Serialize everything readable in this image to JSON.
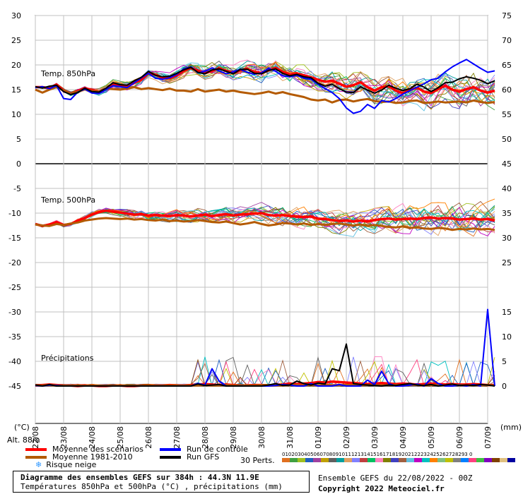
{
  "chart_data": {
    "type": "line",
    "title": "Diagramme des ensembles GEFS sur 384h : 44.3N 11.9E",
    "subtitle": "Températures 850hPa et 500hPa (°C) , précipitations (mm)",
    "left_axis_unit": "(°C)",
    "right_axis_unit": "(mm)",
    "altitude": "Alt. 88m",
    "left_ticks": [
      "30",
      "25",
      "20",
      "15",
      "10",
      "5",
      "0",
      "-5",
      "-10",
      "-15",
      "-20",
      "-25",
      "-30",
      "-35",
      "-40",
      "-45"
    ],
    "right_ticks_top": [
      "75",
      "70",
      "65",
      "60",
      "55",
      "50",
      "45"
    ],
    "right_ticks_middle": [
      "40",
      "35",
      "30",
      "25"
    ],
    "right_ticks_bottom": [
      "15",
      "10",
      "5",
      "0"
    ],
    "x_labels": [
      "22/08",
      "23/08",
      "24/08",
      "25/08",
      "26/08",
      "27/08",
      "28/08",
      "29/08",
      "30/08",
      "31/08",
      "01/09",
      "02/09",
      "03/09",
      "04/09",
      "05/09",
      "06/09",
      "07/09"
    ],
    "ylim_left": [
      -45,
      30
    ],
    "panels": [
      {
        "label": "Temp. 850hPa",
        "unit": "°C"
      },
      {
        "label": "Temp. 500hPa",
        "unit": "°C"
      },
      {
        "label": "Précipitations",
        "unit": "mm"
      }
    ],
    "x_step_days": 0.25,
    "series": [
      {
        "name": "Moyenne des scénarios",
        "panel": "Temp. 850hPa",
        "color": "#ff0000",
        "values": [
          15.5,
          15.5,
          15.3,
          16,
          14.8,
          14.2,
          14.7,
          15.3,
          14.9,
          14.6,
          15.1,
          16.2,
          15.9,
          15.8,
          16.4,
          17,
          18.4,
          18,
          17.4,
          17.3,
          17.9,
          18.8,
          19.4,
          18.8,
          18.3,
          18.8,
          19.3,
          18.8,
          18.4,
          18.9,
          19.2,
          18.6,
          18.4,
          18.9,
          19.4,
          18.6,
          18.1,
          18.3,
          17.9,
          17.5,
          17,
          16.6,
          16.8,
          16.2,
          15.6,
          15.9,
          16.5,
          15.5,
          14.8,
          15.5,
          15.7,
          14.8,
          14.3,
          14.9,
          15.4,
          14.6,
          14.3,
          15.1,
          15.8,
          15,
          14.6,
          15.1,
          15.5,
          14.8,
          14.4,
          14.8
        ]
      },
      {
        "name": "Moyenne 1981-2010",
        "panel": "Temp. 850hPa",
        "color": "#b45a00",
        "values": [
          15,
          14.4,
          15,
          15.5,
          14.8,
          14.2,
          14.6,
          15.1,
          14.7,
          14.6,
          15.2,
          15.1,
          15,
          15.2,
          15.5,
          15.1,
          15.3,
          15.1,
          14.9,
          15.2,
          14.8,
          14.8,
          14.6,
          15.1,
          14.6,
          14.8,
          15,
          14.6,
          14.8,
          14.5,
          14.3,
          14.1,
          14.3,
          14.6,
          14.2,
          14.5,
          14.1,
          13.8,
          13.5,
          13,
          12.8,
          13,
          12.4,
          12.9,
          13,
          12.6,
          12.9,
          13.1,
          12.7,
          12.5,
          12.6,
          12.3,
          12.4,
          12.7,
          12.8,
          12.3,
          12.4,
          12.6,
          12.4,
          12.5,
          12.6,
          12.4,
          12.8,
          12.5,
          12.3,
          12.5
        ]
      },
      {
        "name": "Run de contrôle",
        "panel": "Temp. 850hPa",
        "color": "#0000ff",
        "values": [
          15.4,
          15.6,
          15.2,
          15.8,
          13.2,
          13,
          14.5,
          15.1,
          14.3,
          14.2,
          15,
          15.8,
          15.6,
          15.4,
          16.4,
          17.4,
          18.3,
          17.3,
          17.1,
          17.4,
          18.1,
          19.2,
          19.6,
          18.4,
          18.7,
          19.4,
          18.8,
          18.2,
          18.6,
          19.1,
          18.5,
          18.1,
          18.4,
          19.3,
          18.7,
          17.8,
          17.6,
          17.9,
          17.3,
          17.1,
          16.1,
          15.2,
          14.4,
          13.2,
          11.3,
          10.2,
          10.6,
          12,
          11.2,
          12.8,
          12.5,
          13.2,
          14.1,
          14.8,
          15.5,
          16.2,
          17,
          17.3,
          18.6,
          19.6,
          20.4,
          21.1,
          20.2,
          19.3,
          18.5,
          18.8
        ]
      },
      {
        "name": "Run GFS",
        "panel": "Temp. 850hPa",
        "color": "#000000",
        "values": [
          15.6,
          15.3,
          15.7,
          15.9,
          14.6,
          14,
          14.4,
          15.3,
          14.6,
          14.5,
          15.3,
          16.4,
          16,
          15.9,
          16.8,
          17.5,
          18.7,
          17.9,
          17.6,
          17.7,
          18.3,
          19,
          19.5,
          18.5,
          18.2,
          19,
          19.2,
          18.7,
          18.2,
          19.1,
          19.1,
          18.3,
          18.2,
          18.9,
          19.2,
          18.3,
          17.8,
          18.1,
          17.6,
          17.4,
          16.3,
          15.7,
          16.1,
          15.2,
          14.5,
          14.4,
          15.6,
          14.9,
          14.3,
          14.9,
          15.9,
          15.3,
          14.8,
          15.2,
          16.1,
          15.5,
          14.6,
          15.4,
          16.4,
          16.5,
          17.2,
          17.6,
          17.3,
          16.9,
          16.2,
          16.8
        ]
      },
      {
        "name": "Moyenne des scénarios",
        "panel": "Temp. 500hPa",
        "color": "#ff0000",
        "values": [
          -12.2,
          -12.6,
          -12.3,
          -11.8,
          -12.4,
          -12.2,
          -11.5,
          -11,
          -10.3,
          -9.8,
          -9.5,
          -9.7,
          -9.9,
          -10.1,
          -10.3,
          -10.2,
          -10.5,
          -10.4,
          -10.5,
          -10.6,
          -10.4,
          -10.5,
          -10.7,
          -10.5,
          -10.3,
          -10.6,
          -10.4,
          -10.2,
          -10.5,
          -10.3,
          -10.2,
          -10.1,
          -10,
          -10.4,
          -10.5,
          -10.4,
          -10.6,
          -10.7,
          -10.8,
          -10.7,
          -11.1,
          -11.2,
          -11.4,
          -11.6,
          -11.5,
          -11.7,
          -11.5,
          -11.7,
          -11.4,
          -11.2,
          -11.1,
          -11.3,
          -11.2,
          -11.1,
          -11.2,
          -11,
          -10.9,
          -11.1,
          -11,
          -11.1,
          -11.3,
          -11.2,
          -11.1,
          -11.3,
          -11.2,
          -11.5
        ]
      },
      {
        "name": "Moyenne 1981-2010",
        "panel": "Temp. 500hPa",
        "color": "#b45a00",
        "values": [
          -12.3,
          -12.5,
          -12.6,
          -12.2,
          -12.4,
          -12.1,
          -11.9,
          -11.5,
          -11.3,
          -11.1,
          -11,
          -11.1,
          -11.2,
          -11.1,
          -11.3,
          -11.2,
          -11.4,
          -11.5,
          -11.3,
          -11.6,
          -11.5,
          -11.7,
          -11.6,
          -11.4,
          -11.6,
          -11.8,
          -11.9,
          -11.7,
          -12,
          -12.3,
          -12.1,
          -11.8,
          -12.2,
          -12.5,
          -12.3,
          -12,
          -12.1,
          -12.3,
          -12.1,
          -12.4,
          -12.2,
          -12.4,
          -12.2,
          -12.1,
          -12.3,
          -12.5,
          -12.3,
          -12.6,
          -12.4,
          -12.6,
          -12.8,
          -12.9,
          -12.7,
          -13,
          -12.9,
          -13.1,
          -13.2,
          -13,
          -13.1,
          -13.4,
          -13.2,
          -13.3,
          -13.1,
          -13.3,
          -13.2,
          -13.4
        ]
      },
      {
        "name": "Moyenne des scénarios",
        "panel": "Précipitations",
        "color": "#ff0000",
        "values": [
          0.1,
          0.2,
          0.3,
          0.2,
          0.1,
          0.1,
          0,
          0.1,
          0.1,
          0,
          0,
          0.1,
          0.1,
          0,
          0,
          0.1,
          0.1,
          0.1,
          0.1,
          0.2,
          0.1,
          0.1,
          0.2,
          0.3,
          0.4,
          0.3,
          0.2,
          0.3,
          0.2,
          0.1,
          0.1,
          0.2,
          0.2,
          0.1,
          0.2,
          0.3,
          0.5,
          0.4,
          0.5,
          0.6,
          0.8,
          0.7,
          0.9,
          0.8,
          0.7,
          0.6,
          0.5,
          0.4,
          0.5,
          0.6,
          0.5,
          0.4,
          0.5,
          0.4,
          0.3,
          0.4,
          0.5,
          0.4,
          0.3,
          0.4,
          0.3,
          0.3,
          0.4,
          0.3,
          0.2,
          0.2
        ]
      },
      {
        "name": "Moyenne 1981-2010",
        "panel": "Précipitations",
        "color": "#b45a00",
        "values": [
          0.1,
          0.1,
          0.2,
          0.1,
          0.1,
          0.1,
          0.1,
          0.1,
          0.1,
          0.1,
          0.1,
          0.1,
          0.1,
          0.1,
          0.1,
          0.1,
          0.1,
          0.1,
          0.1,
          0.1,
          0.1,
          0.1,
          0.1,
          0.1,
          0.2,
          0.1,
          0.1,
          0.2,
          0.1,
          0.1,
          0.1,
          0.1,
          0.2,
          0.1,
          0.1,
          0.1,
          0.2,
          0.2,
          0.1,
          0.2,
          0.1,
          0.2,
          0.1,
          0.2,
          0.2,
          0.2,
          0.1,
          0.2,
          0.2,
          0.1,
          0.2,
          0.2,
          0.1,
          0.2,
          0.2,
          0.1,
          0.2,
          0.2,
          0.1,
          0.2,
          0.2,
          0.1,
          0.2,
          0.1,
          0.2,
          0.1
        ]
      },
      {
        "name": "Run de contrôle",
        "panel": "Précipitations",
        "color": "#0000ff",
        "values": [
          0.1,
          0,
          0.2,
          0.1,
          0,
          0,
          0,
          0,
          0,
          0,
          0,
          0,
          0,
          0,
          0,
          0,
          0,
          0,
          0,
          0,
          0,
          0,
          0,
          0.5,
          0.2,
          3.5,
          1,
          0,
          0,
          0,
          0,
          0,
          0,
          0,
          0.1,
          0.3,
          0.2,
          0,
          0,
          0.5,
          0,
          0,
          0,
          0.3,
          0,
          0,
          0,
          1.2,
          0.3,
          3,
          0.5,
          0,
          0,
          0.2,
          0.4,
          0,
          1.5,
          0.5,
          0,
          0,
          0.2,
          0,
          0.3,
          0,
          15.5,
          0
        ]
      },
      {
        "name": "Run GFS",
        "panel": "Précipitations",
        "color": "#000000",
        "values": [
          0.2,
          0,
          0.3,
          0,
          0,
          0,
          0,
          0,
          0,
          0,
          0,
          0,
          0,
          0,
          0,
          0,
          0,
          0,
          0,
          0,
          0,
          0,
          0,
          0.4,
          0.1,
          0.2,
          0.3,
          0,
          0,
          0,
          0,
          0,
          0,
          0.2,
          0.5,
          0.1,
          0.2,
          1,
          0.5,
          0.2,
          0.6,
          0.4,
          3.5,
          3.1,
          8.5,
          0.5,
          0.3,
          0.2,
          0.1,
          0,
          0.2,
          0.1,
          0.3,
          0.5,
          0.2,
          0.1,
          0.3,
          0,
          0.2,
          0.4,
          0.1,
          0.2,
          0.1,
          0.3,
          0.2,
          0
        ]
      }
    ]
  },
  "legend": {
    "items": [
      {
        "label": "Moyenne des scénarios",
        "color": "#ff0000"
      },
      {
        "label": "Moyenne 1981-2010",
        "color": "#b45a00"
      },
      {
        "label": "Run de contrôle",
        "color": "#0000ff"
      },
      {
        "label": "Run GFS",
        "color": "#000000"
      }
    ],
    "snow_label": "Risque neige",
    "snow_icon": "snowflake-icon",
    "perts_label": "30 Perts.",
    "perts_numbers": "01020304050607080910111213141516171819202122232425262728293 0",
    "perts_colors": [
      "#e07020",
      "#40a040",
      "#a0c020",
      "#2060c0",
      "#a040a0",
      "#c0a000",
      "#606060",
      "#00a0a0",
      "#e0a060",
      "#8080ff",
      "#c04040",
      "#00c060",
      "#ff80c0",
      "#808000",
      "#4040c0",
      "#a06040",
      "#60c0e0",
      "#c000c0",
      "#00c0c0",
      "#ff8000",
      "#80c080",
      "#c0c000",
      "#808080",
      "#0080ff",
      "#ff4080",
      "#40c040",
      "#8000c0",
      "#804000",
      "#e0c080",
      "#0000a0"
    ]
  },
  "info": {
    "title": "Diagramme des ensembles GEFS sur 384h : 44.3N 11.9E",
    "subtitle": "Températures 850hPa et 500hPa (°C) , précipitations (mm)",
    "run": "Ensemble GEFS du 22/08/2022 - 00Z",
    "copyright": "Copyright 2022 Meteociel.fr"
  }
}
